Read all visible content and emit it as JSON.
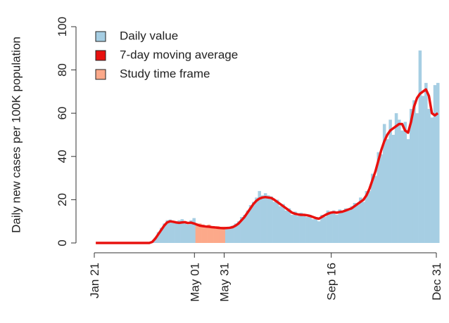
{
  "chart_data": {
    "type": "bar_line",
    "ylabel": "Daily new cases per 100K population",
    "x": [
      0,
      3,
      6,
      9,
      12,
      15,
      18,
      21,
      24,
      27,
      30,
      33,
      36,
      39,
      42,
      45,
      48,
      51,
      54,
      57,
      60,
      63,
      66,
      69,
      72,
      75,
      78,
      81,
      84,
      87,
      90,
      93,
      96,
      99,
      102,
      105,
      108,
      111,
      114,
      117,
      120,
      123,
      126,
      129,
      132,
      135,
      138,
      141,
      144,
      147,
      150,
      153,
      156,
      159,
      162,
      165,
      168,
      171,
      174,
      177,
      180,
      183,
      186,
      189,
      192,
      195,
      198,
      201,
      204,
      207,
      210,
      213,
      216,
      219,
      222,
      225,
      228,
      231,
      234,
      237,
      240,
      243,
      246,
      249,
      252,
      255,
      258,
      261,
      264,
      267,
      270,
      273,
      276,
      279,
      282,
      285,
      288,
      291,
      294,
      297,
      300,
      303,
      306,
      309,
      312,
      315,
      318,
      321,
      324,
      327,
      330,
      333,
      336,
      339,
      342,
      345
    ],
    "xlim": [
      0,
      345
    ],
    "xticks": [
      {
        "value": 0,
        "label": "Jan 21"
      },
      {
        "value": 101,
        "label": "May 01"
      },
      {
        "value": 131,
        "label": "May 31"
      },
      {
        "value": 239,
        "label": "Sep 16"
      },
      {
        "value": 345,
        "label": "Dec 31"
      }
    ],
    "ylim": [
      0,
      100
    ],
    "yticks": [
      0,
      20,
      40,
      60,
      80,
      100
    ],
    "series": [
      {
        "name": "Daily value",
        "color": "#a6cee3",
        "values": [
          0,
          0,
          0,
          0,
          0,
          0,
          0,
          0,
          0,
          0,
          0,
          0,
          0,
          0,
          0,
          0,
          0,
          0,
          0,
          0.6,
          2.5,
          5,
          7,
          9,
          10.5,
          10.8,
          10,
          9,
          10.5,
          11,
          9,
          8.5,
          10.5,
          11.5,
          8,
          9,
          8.5,
          7,
          8.5,
          7,
          7.5,
          7.8,
          6.5,
          7.5,
          6.5,
          7.5,
          8,
          9,
          10,
          12,
          13,
          15,
          17.5,
          19,
          21,
          24,
          22,
          23,
          22,
          21.5,
          19,
          20,
          17,
          18,
          15,
          16,
          13,
          14.5,
          12.5,
          14,
          13.5,
          12,
          13,
          11,
          12,
          10,
          13,
          12,
          15,
          13.5,
          15,
          13,
          15.5,
          14,
          16,
          15,
          17,
          18.5,
          17.5,
          21,
          19,
          24,
          24,
          32,
          31,
          42,
          41,
          55,
          48,
          57,
          50,
          60,
          57,
          52,
          56,
          48,
          62,
          66,
          60,
          89,
          68,
          74,
          62,
          58,
          73,
          74
        ]
      },
      {
        "name": "7-day moving average",
        "color": "#e8110f",
        "values": [
          0,
          0,
          0,
          0,
          0,
          0,
          0,
          0,
          0,
          0,
          0,
          0,
          0,
          0,
          0,
          0,
          0,
          0,
          0,
          0.5,
          2,
          4,
          6,
          8,
          9.5,
          10,
          9.8,
          9.5,
          9.3,
          9.5,
          9.6,
          9.2,
          9.4,
          9,
          8.5,
          8,
          7.8,
          7.6,
          7.5,
          7.3,
          7.2,
          7,
          6.9,
          6.8,
          6.9,
          7,
          7.3,
          8,
          9,
          10.5,
          12,
          14,
          16,
          18,
          19.5,
          20.5,
          21,
          21.2,
          21,
          20.8,
          20,
          19,
          18,
          17,
          16,
          15,
          14,
          13.5,
          13.2,
          13,
          13,
          12.8,
          12.5,
          12,
          11.5,
          11.2,
          12,
          12.8,
          13.5,
          14,
          14.2,
          14,
          14.3,
          14.5,
          15,
          15.5,
          16,
          17,
          18,
          19,
          20,
          22,
          25,
          29,
          33,
          38,
          43,
          47,
          50,
          52,
          53,
          54,
          55,
          55,
          52,
          51,
          56,
          63,
          67,
          69,
          70,
          71,
          68,
          60,
          59,
          60
        ]
      }
    ],
    "highlight": {
      "name": "Study time frame",
      "color": "#fca98a",
      "x": [
        101,
        131
      ]
    },
    "legend": "top-left"
  }
}
